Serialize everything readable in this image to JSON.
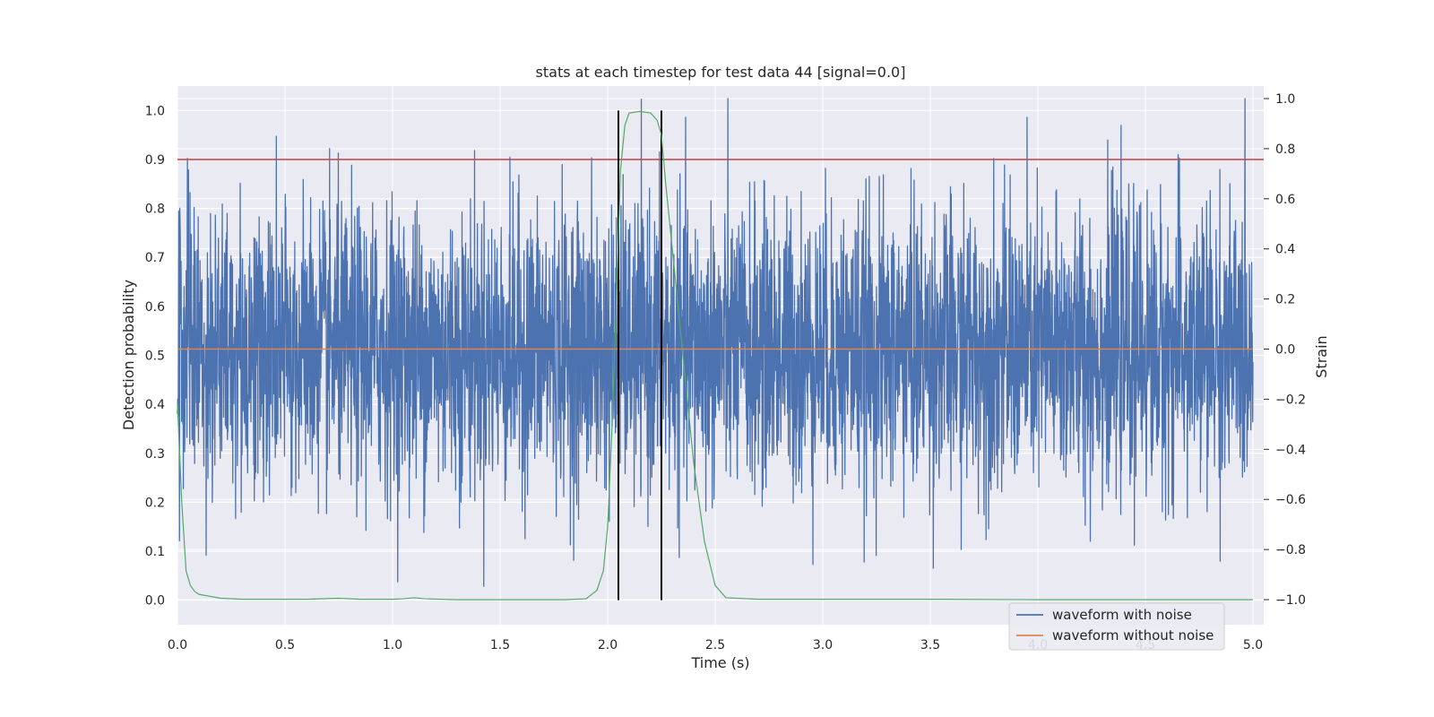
{
  "chart_data": {
    "type": "line",
    "title": "stats at each timestep for test data 44 [signal=0.0]",
    "xlabel": "Time (s)",
    "ylabel": "Detection probability",
    "y2label": "Strain",
    "xlim": [
      0.0,
      5.05
    ],
    "ylim": [
      -0.05,
      1.05
    ],
    "y2lim": [
      -1.1,
      1.05
    ],
    "xticks": [
      "0.0",
      "0.5",
      "1.0",
      "1.5",
      "2.0",
      "2.5",
      "3.0",
      "3.5",
      "4.0",
      "4.5",
      "5.0"
    ],
    "yticks": [
      "0.0",
      "0.1",
      "0.2",
      "0.3",
      "0.4",
      "0.5",
      "0.6",
      "0.7",
      "0.8",
      "0.9",
      "1.0"
    ],
    "y2ticks": [
      "−1.0",
      "−0.8",
      "−0.6",
      "−0.4",
      "−0.2",
      "0.0",
      "0.2",
      "0.4",
      "0.6",
      "0.8",
      "1.0"
    ],
    "grid": true,
    "legend_position": "lower-right",
    "threshold": {
      "y": 0.9,
      "color": "#c44e52"
    },
    "vlines": [
      2.05,
      2.25
    ],
    "series": [
      {
        "name": "waveform with noise",
        "axis": "right",
        "color": "#4c72b0",
        "amplitude_range": [
          -1.0,
          1.0
        ]
      },
      {
        "name": "waveform without noise",
        "axis": "right",
        "color": "#dd8452",
        "constant": 0.0
      },
      {
        "axis": "left",
        "color": "#55a868",
        "x": [
          0.0,
          0.02,
          0.04,
          0.06,
          0.08,
          0.1,
          0.15,
          0.2,
          0.3,
          0.6,
          0.75,
          0.85,
          1.0,
          1.05,
          1.1,
          1.15,
          1.3,
          1.8,
          1.9,
          1.95,
          1.98,
          2.0,
          2.02,
          2.04,
          2.06,
          2.08,
          2.1,
          2.15,
          2.2,
          2.23,
          2.25,
          2.27,
          2.3,
          2.35,
          2.4,
          2.45,
          2.5,
          2.55,
          2.7,
          3.5,
          4.0,
          5.0
        ],
        "y": [
          0.4,
          0.2,
          0.06,
          0.03,
          0.018,
          0.012,
          0.008,
          0.004,
          0.002,
          0.002,
          0.004,
          0.002,
          0.002,
          0.003,
          0.005,
          0.003,
          0.001,
          0.001,
          0.003,
          0.02,
          0.06,
          0.15,
          0.35,
          0.6,
          0.88,
          0.97,
          0.995,
          0.998,
          0.995,
          0.98,
          0.95,
          0.85,
          0.72,
          0.5,
          0.28,
          0.12,
          0.03,
          0.005,
          0.002,
          0.002,
          0.001,
          0.001
        ]
      }
    ]
  }
}
